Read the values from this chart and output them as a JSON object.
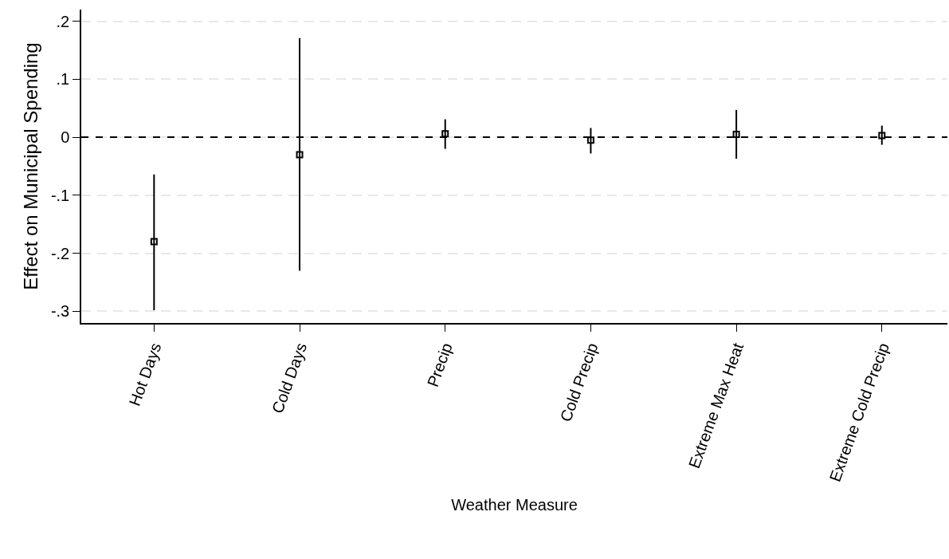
{
  "chart_data": {
    "type": "scatter",
    "xlabel": "Weather Measure",
    "ylabel": "Effect on Municipal Spending",
    "categories": [
      "Hot Days",
      "Cold Days",
      "Precip",
      "Cold Precip",
      "Extreme Max Heat",
      "Extreme Cold Precip"
    ],
    "series": [
      {
        "color": "#000000",
        "values": [
          -0.18,
          -0.03,
          0.006,
          -0.005,
          0.005,
          0.003
        ],
        "errors": [
          [
            -0.298,
            -0.064
          ],
          [
            -0.23,
            0.171
          ],
          [
            -0.02,
            0.031
          ],
          [
            -0.028,
            0.016
          ],
          [
            -0.037,
            0.047
          ],
          [
            -0.013,
            0.02
          ]
        ]
      }
    ],
    "ylim": [
      -0.32,
      0.22
    ],
    "yticks": [
      {
        "value": -0.3,
        "label": "-.3"
      },
      {
        "value": -0.2,
        "label": "-.2"
      },
      {
        "value": -0.1,
        "label": "-.1"
      },
      0,
      {
        "value": 0.1,
        "label": ".1"
      },
      {
        "value": 0.2,
        "label": ".2"
      }
    ],
    "grid": "y",
    "marker": "square",
    "ref_lines": [
      {
        "axis": "y",
        "value": 0,
        "color": "#000000",
        "line_style": "dashed"
      }
    ]
  }
}
